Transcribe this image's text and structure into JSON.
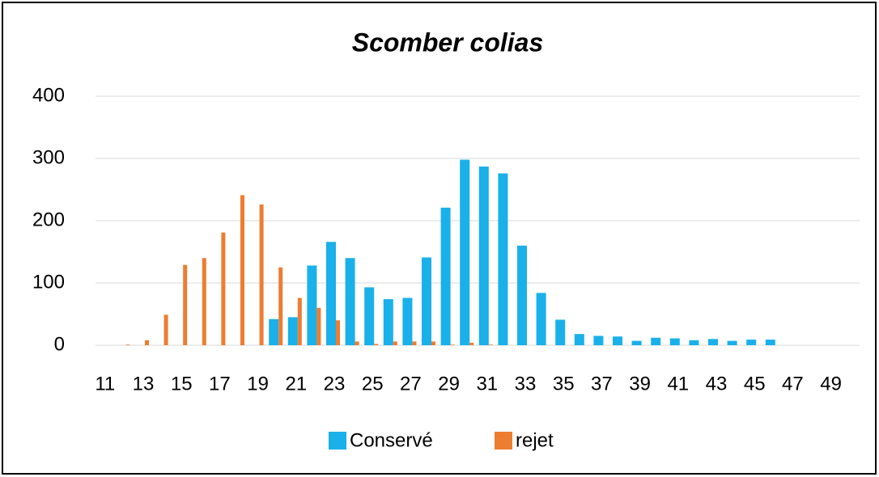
{
  "chart_data": {
    "type": "bar",
    "title": "Scomber colias",
    "categories": [
      "11",
      null,
      "13",
      null,
      "15",
      null,
      "17",
      null,
      "19",
      null,
      "21",
      null,
      "23",
      null,
      "25",
      null,
      "27",
      null,
      "29",
      null,
      "31",
      null,
      "33",
      null,
      "35",
      null,
      "37",
      null,
      "39",
      null,
      "41",
      null,
      "43",
      null,
      "45",
      null,
      "47",
      null,
      "49",
      null
    ],
    "series": [
      {
        "name": "Conservé",
        "color": "#1ab0ea",
        "values": [
          0,
          0,
          0,
          0,
          0,
          0,
          0,
          0,
          0,
          42,
          45,
          128,
          166,
          140,
          93,
          74,
          76,
          141,
          221,
          298,
          287,
          276,
          160,
          84,
          41,
          18,
          15,
          14,
          7,
          12,
          11,
          8,
          10,
          7,
          9,
          9,
          0,
          0,
          0,
          0
        ]
      },
      {
        "name": "rejet",
        "color": "#ed7d31",
        "values": [
          0,
          1,
          8,
          49,
          129,
          140,
          181,
          241,
          226,
          125,
          76,
          60,
          40,
          6,
          2,
          6,
          6,
          6,
          1,
          4,
          1,
          0,
          0,
          0,
          0,
          0,
          0,
          0,
          0,
          0,
          0,
          0,
          0,
          0,
          0,
          0,
          0,
          0,
          0,
          0
        ]
      }
    ],
    "ylim": [
      0,
      400
    ],
    "yticks": [
      0,
      100,
      200,
      300,
      400
    ],
    "grid": true,
    "legend": "bottom"
  }
}
